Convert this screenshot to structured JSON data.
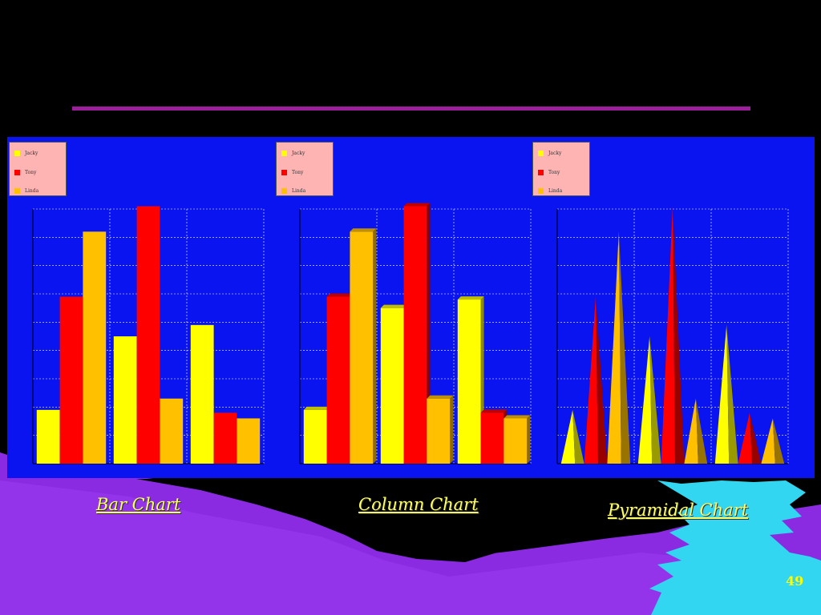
{
  "colors": {
    "panel_bg": "#0a14f0",
    "jacky": "#ffff00",
    "tony": "#ff0000",
    "linda": "#ffc000",
    "legend_bg": "#ffb4b4",
    "rule": "#9b1e9b",
    "caption": "#ffff66"
  },
  "legend": [
    "Jacky",
    "Tony",
    "Linda"
  ],
  "captions": {
    "bar": "Bar Chart",
    "column": "Column Chart",
    "pyramidal": "Pyramidal Chart"
  },
  "page_number": "49",
  "chart_data": [
    {
      "type": "bar",
      "style": "flat",
      "title": "",
      "categories": [
        "",
        "",
        ""
      ],
      "series": [
        {
          "name": "Jacky",
          "values": [
            1.9,
            4.5,
            4.9
          ]
        },
        {
          "name": "Tony",
          "values": [
            5.9,
            9.1,
            1.8
          ]
        },
        {
          "name": "Linda",
          "values": [
            8.2,
            2.3,
            1.6
          ]
        }
      ],
      "ylim": [
        0,
        9
      ],
      "grid": true,
      "legend_position": "top-left"
    },
    {
      "type": "bar",
      "style": "3d-column",
      "title": "",
      "categories": [
        "",
        "",
        ""
      ],
      "series": [
        {
          "name": "Jacky",
          "values": [
            1.9,
            5.5,
            5.8
          ]
        },
        {
          "name": "Tony",
          "values": [
            5.9,
            9.1,
            1.8
          ]
        },
        {
          "name": "Linda",
          "values": [
            8.2,
            2.3,
            1.6
          ]
        }
      ],
      "ylim": [
        0,
        9
      ],
      "grid": true,
      "legend_position": "top-left"
    },
    {
      "type": "bar",
      "style": "pyramid",
      "title": "",
      "categories": [
        "",
        "",
        ""
      ],
      "series": [
        {
          "name": "Jacky",
          "values": [
            1.9,
            4.5,
            4.9
          ]
        },
        {
          "name": "Tony",
          "values": [
            5.9,
            9.1,
            1.8
          ]
        },
        {
          "name": "Linda",
          "values": [
            8.2,
            2.3,
            1.6
          ]
        }
      ],
      "ylim": [
        0,
        9
      ],
      "grid": true,
      "legend_position": "top-left"
    }
  ]
}
